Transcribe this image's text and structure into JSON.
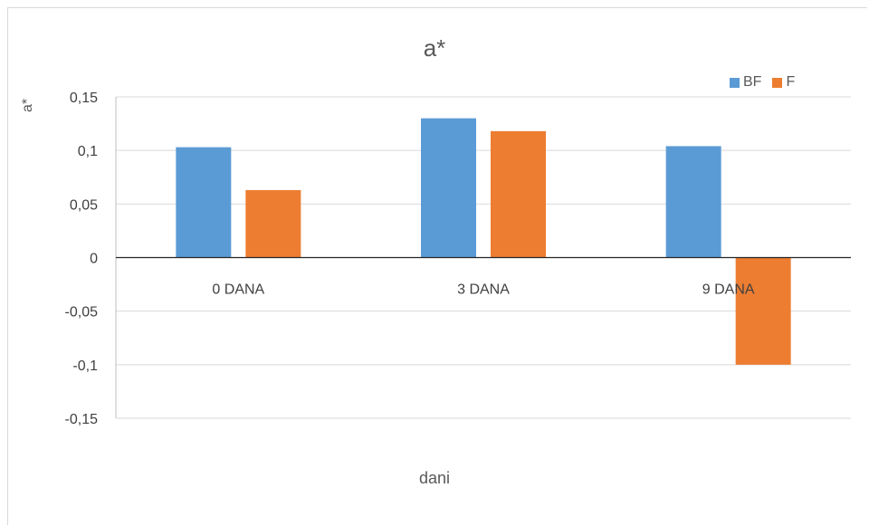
{
  "chart_data": {
    "type": "bar",
    "title": "a*",
    "xlabel": "dani",
    "ylabel": "a*",
    "categories": [
      "0 DANA",
      "3 DANA",
      "9 DANA"
    ],
    "series": [
      {
        "name": "BF",
        "color": "#5b9bd5",
        "values": [
          0.103,
          0.13,
          0.104
        ]
      },
      {
        "name": "F",
        "color": "#ed7d31",
        "values": [
          0.063,
          0.118,
          -0.1
        ]
      }
    ],
    "ylim": [
      -0.15,
      0.15
    ],
    "yticks": [
      0.15,
      0.1,
      0.05,
      0,
      -0.05,
      -0.1,
      -0.15
    ],
    "ytick_labels": [
      "0,15",
      "0,1",
      "0,05",
      "0",
      "-0,05",
      "-0,1",
      "-0,15"
    ],
    "grid": true,
    "legend_position": "top-right"
  }
}
